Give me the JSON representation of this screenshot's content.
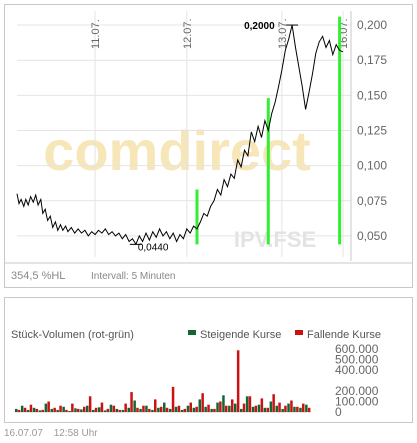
{
  "price_chart": {
    "type": "line",
    "y_axis": {
      "range": [
        0.035,
        0.21
      ],
      "ticks": [
        "0,200",
        "0,175",
        "0,150",
        "0,125",
        "0,100",
        "0,075",
        "0,050"
      ],
      "tick_values": [
        0.2,
        0.175,
        0.15,
        0.125,
        0.1,
        0.075,
        0.05
      ]
    },
    "date_labels": [
      "11.07.",
      "12.07.",
      "13.07.",
      "16.07."
    ],
    "annotations": {
      "high": "0,2000",
      "low": "0,0440"
    },
    "watermark": "comdirect",
    "exchange_label": "IPV.FSE",
    "footer_left": "354,5 %HL",
    "footer_interval": "Intervall: 5 Minuten",
    "color_line": "#000000",
    "color_signal": "#33ee33",
    "chart_data": {
      "type": "line",
      "series": [
        {
          "points": [
            [
              0,
              0.08
            ],
            [
              0.6,
              0.073
            ],
            [
              1.2,
              0.076
            ],
            [
              2,
              0.071
            ],
            [
              2.6,
              0.076
            ],
            [
              3.3,
              0.072
            ],
            [
              4,
              0.078
            ],
            [
              4.8,
              0.074
            ],
            [
              5.5,
              0.079
            ],
            [
              6.2,
              0.072
            ],
            [
              7,
              0.076
            ],
            [
              7.6,
              0.066
            ],
            [
              8.3,
              0.069
            ],
            [
              9,
              0.061
            ],
            [
              9.8,
              0.064
            ],
            [
              10.5,
              0.056
            ],
            [
              11.3,
              0.06
            ],
            [
              12,
              0.054
            ],
            [
              12.8,
              0.058
            ],
            [
              13.5,
              0.054
            ],
            [
              14.3,
              0.057
            ],
            [
              15,
              0.053
            ],
            [
              16,
              0.056
            ],
            [
              17,
              0.052
            ],
            [
              18,
              0.055
            ],
            [
              19,
              0.052
            ],
            [
              20,
              0.054
            ],
            [
              21,
              0.05
            ],
            [
              22,
              0.053
            ],
            [
              23,
              0.051
            ],
            [
              24,
              0.054
            ],
            [
              25,
              0.052
            ],
            [
              26,
              0.055
            ],
            [
              27,
              0.051
            ],
            [
              28,
              0.053
            ],
            [
              29,
              0.05
            ],
            [
              30,
              0.052
            ],
            [
              31,
              0.048
            ],
            [
              32,
              0.051
            ],
            [
              33,
              0.046
            ],
            [
              34,
              0.048
            ],
            [
              35,
              0.044
            ],
            [
              36,
              0.05
            ],
            [
              37,
              0.046
            ],
            [
              38,
              0.052
            ],
            [
              39,
              0.047
            ],
            [
              40,
              0.053
            ],
            [
              41,
              0.049
            ],
            [
              42,
              0.055
            ],
            [
              43,
              0.05
            ],
            [
              44,
              0.053
            ],
            [
              45,
              0.048
            ],
            [
              46,
              0.052
            ],
            [
              47,
              0.046
            ],
            [
              48,
              0.051
            ],
            [
              49,
              0.048
            ],
            [
              50,
              0.055
            ],
            [
              51,
              0.052
            ],
            [
              52,
              0.057
            ],
            [
              53,
              0.055
            ],
            [
              54,
              0.06
            ],
            [
              55,
              0.066
            ],
            [
              56,
              0.064
            ],
            [
              57,
              0.071
            ],
            [
              58,
              0.075
            ],
            [
              59,
              0.083
            ],
            [
              60,
              0.079
            ],
            [
              61,
              0.09
            ],
            [
              62,
              0.085
            ],
            [
              63,
              0.094
            ],
            [
              64,
              0.091
            ],
            [
              65,
              0.104
            ],
            [
              66,
              0.099
            ],
            [
              67,
              0.111
            ],
            [
              68,
              0.107
            ],
            [
              69,
              0.124
            ],
            [
              70,
              0.117
            ],
            [
              71,
              0.128
            ],
            [
              72,
              0.12
            ],
            [
              73,
              0.132
            ],
            [
              74,
              0.125
            ],
            [
              75,
              0.137
            ],
            [
              76,
              0.145
            ],
            [
              77,
              0.156
            ],
            [
              78,
              0.168
            ],
            [
              79,
              0.182
            ],
            [
              80,
              0.19
            ],
            [
              81,
              0.2
            ],
            [
              82,
              0.184
            ],
            [
              83,
              0.17
            ],
            [
              84,
              0.156
            ],
            [
              85,
              0.14
            ],
            [
              86,
              0.152
            ],
            [
              87,
              0.165
            ],
            [
              88,
              0.18
            ],
            [
              89,
              0.188
            ],
            [
              90,
              0.192
            ],
            [
              91,
              0.184
            ],
            [
              92,
              0.189
            ],
            [
              93,
              0.179
            ],
            [
              94,
              0.186
            ],
            [
              95,
              0.182
            ],
            [
              96,
              0.181
            ]
          ]
        }
      ],
      "signal_bars": [
        {
          "x": 53,
          "y0": 0.044,
          "y1": 0.083
        },
        {
          "x": 74,
          "y0": 0.044,
          "y1": 0.148
        },
        {
          "x": 95,
          "y0": 0.044,
          "y1": 0.206
        }
      ]
    }
  },
  "volume_chart": {
    "title": "Stück-Volumen (rot-grün)",
    "legend": [
      {
        "label": "Steigende Kurse",
        "color": "#116633"
      },
      {
        "label": "Fallende Kurse",
        "color": "#cc1111"
      }
    ],
    "y_ticks": [
      "600.000",
      "500.000",
      "400.000",
      "200.000",
      "100.000",
      "0"
    ],
    "tick_values": [
      600000,
      500000,
      400000,
      200000,
      100000,
      0
    ],
    "y_range": [
      0,
      650000
    ],
    "chart_data": {
      "type": "bar",
      "up_values": [
        30000,
        60000,
        20000,
        40000,
        15000,
        80000,
        30000,
        20000,
        50000,
        10000,
        35000,
        25000,
        60000,
        20000,
        45000,
        15000,
        70000,
        30000,
        20000,
        40000,
        110000,
        30000,
        60000,
        20000,
        40000,
        90000,
        30000,
        50000,
        20000,
        60000,
        40000,
        120000,
        50000,
        30000,
        90000,
        160000,
        60000,
        80000,
        30000,
        150000,
        50000,
        70000,
        40000,
        100000,
        60000,
        30000,
        80000,
        50000,
        40000,
        70000
      ],
      "down_values": [
        20000,
        40000,
        70000,
        30000,
        20000,
        100000,
        40000,
        60000,
        20000,
        80000,
        30000,
        50000,
        150000,
        40000,
        90000,
        30000,
        60000,
        20000,
        80000,
        190000,
        40000,
        60000,
        30000,
        120000,
        50000,
        40000,
        240000,
        60000,
        30000,
        90000,
        50000,
        180000,
        70000,
        30000,
        100000,
        60000,
        120000,
        590000,
        80000,
        150000,
        60000,
        130000,
        40000,
        170000,
        90000,
        60000,
        110000,
        50000,
        80000,
        40000
      ]
    }
  },
  "footer": {
    "date": "16.07.07",
    "time": "12:58 Uhr"
  }
}
